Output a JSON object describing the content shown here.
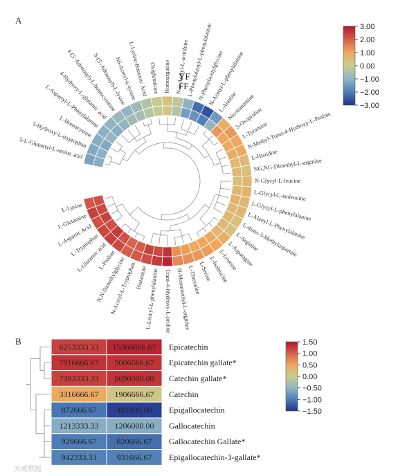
{
  "chart_data": [
    {
      "panel_label": "A",
      "type": "heatmap",
      "layout": "circular",
      "group_labels": [
        "YF",
        "FF"
      ],
      "colorbar": {
        "ticks": [
          "3.00",
          "2.00",
          "1.00",
          "0.00",
          "−1.00",
          "−2.00",
          "−3.00"
        ],
        "range": [
          -3,
          3
        ]
      },
      "rows": [
        {
          "name": "5-L-Glutamyl-L-amino acid",
          "YF": -1.3,
          "FF": -1.1
        },
        {
          "name": "5-Hydroxy-L-tryptophan",
          "YF": -1.2,
          "FF": -1.0
        },
        {
          "name": "L-Homocystine",
          "YF": -1.1,
          "FF": -1.2
        },
        {
          "name": "L-Aspartyl-L-Phenylalanine",
          "YF": -1.0,
          "FF": -0.9
        },
        {
          "name": "4-Hydroxy-L-glutamic acid",
          "YF": -0.9,
          "FF": -1.1
        },
        {
          "name": "4-(5'-Adenosyl)-L-homocysteine",
          "YF": -0.8,
          "FF": -0.9
        },
        {
          "name": "S-(5'-Adenosyl)-L-lysine",
          "YF": -0.9,
          "FF": -0.7
        },
        {
          "name": "N6-Acetyl-L-lysine",
          "YF": -0.7,
          "FF": -0.6
        },
        {
          "name": "L-Lysine-Butanoic Acid",
          "YF": -0.4,
          "FF": -0.3
        },
        {
          "name": "Oxiglutatione",
          "YF": 0.0,
          "FF": -0.1
        },
        {
          "name": "Homoarginine",
          "YF": 0.3,
          "FF": 0.2
        },
        {
          "name": "N-α-Acetyl-L-ornithine",
          "YF": -0.2,
          "FF": -0.4
        },
        {
          "name": "L-Phenylalanyl-L-phenylalanine",
          "YF": -1.0,
          "FF": -1.4
        },
        {
          "name": "N-Phenylacetylglycine",
          "YF": -2.2,
          "FF": -1.6
        },
        {
          "name": "N-Acetyl-L-phenylalanine",
          "YF": -2.6,
          "FF": -2.0
        },
        {
          "name": "L-Alanine",
          "YF": -1.5,
          "FF": -0.9
        },
        {
          "name": "Nicotianamine",
          "YF": 0.8,
          "FF": 1.2
        },
        {
          "name": "5-Oxoproline",
          "YF": 1.2,
          "FF": 1.0
        },
        {
          "name": "L-Tyramine",
          "YF": 1.0,
          "FF": 0.9
        },
        {
          "name": "N-Methyl-Trans-4-Hydroxy-L-Proline",
          "YF": 0.9,
          "FF": 0.8
        },
        {
          "name": "L-Histidine",
          "YF": 0.5,
          "FF": 0.6
        },
        {
          "name": "NG,NG-Dimethyl-L-arginine",
          "YF": 0.4,
          "FF": 0.5
        },
        {
          "name": "N-Glycyl-L-leucine",
          "YF": 0.6,
          "FF": 0.4
        },
        {
          "name": "L-Glycyl-L-isoleucine",
          "YF": 0.7,
          "FF": 0.6
        },
        {
          "name": "L-Glycyl-L-phenylalanine",
          "YF": 0.5,
          "FF": 0.7
        },
        {
          "name": "L-Alanyl-L-Phenylalanine",
          "YF": 0.6,
          "FF": 0.5
        },
        {
          "name": "L-threo-3-Methylaspartate",
          "YF": 0.4,
          "FF": 0.6
        },
        {
          "name": "L-Arginine",
          "YF": 0.3,
          "FF": 0.5
        },
        {
          "name": "L-Asparagine",
          "YF": 0.8,
          "FF": 0.6
        },
        {
          "name": "L-Leucine",
          "YF": 1.0,
          "FF": 0.9
        },
        {
          "name": "L-Isoleucine",
          "YF": 1.1,
          "FF": 1.0
        },
        {
          "name": "L-Serine",
          "YF": 1.2,
          "FF": 1.0
        },
        {
          "name": "L-Threonine",
          "YF": 1.3,
          "FF": 1.1
        },
        {
          "name": "N-Monomethyl-L-arginine",
          "YF": 1.4,
          "FF": 1.3
        },
        {
          "name": "Trans-4-Hydroxy-L-proline",
          "YF": 2.8,
          "FF": 2.6
        },
        {
          "name": "L-Leucyl-L-phenylalanine",
          "YF": 2.5,
          "FF": 2.3
        },
        {
          "name": "Histamine",
          "YF": 2.2,
          "FF": 2.4
        },
        {
          "name": "N-Acetyl-L-Tryptophan",
          "YF": 2.1,
          "FF": 2.0
        },
        {
          "name": "N,N-Dimethylglycine",
          "YF": 2.0,
          "FF": 1.9
        },
        {
          "name": "L-Proline",
          "YF": 2.3,
          "FF": 2.2
        },
        {
          "name": "L-Glutamic acid",
          "YF": 2.4,
          "FF": 2.5
        },
        {
          "name": "L-Tryptophan",
          "YF": 2.3,
          "FF": 2.2
        },
        {
          "name": "L-Aspartic Acid",
          "YF": 2.2,
          "FF": 2.4
        },
        {
          "name": "L-Glutamine",
          "YF": 2.4,
          "FF": 2.3
        },
        {
          "name": "L-Lysine",
          "YF": 2.1,
          "FF": 2.2
        }
      ]
    },
    {
      "panel_label": "B",
      "type": "heatmap",
      "layout": "rectangular",
      "colorbar": {
        "ticks": [
          "1.50",
          "1.00",
          "0.50",
          "0.00",
          "−0.50",
          "−1.00",
          "−1.50"
        ],
        "range": [
          -1.5,
          1.5
        ]
      },
      "rows": [
        {
          "name": "Epicatechin",
          "values": [
            "6253333.33",
            "15366666.67"
          ],
          "colors": [
            1.2,
            1.4
          ]
        },
        {
          "name": "Epicatechin gallate*",
          "values": [
            "7916666.67",
            "9006666.67"
          ],
          "colors": [
            1.3,
            1.3
          ]
        },
        {
          "name": "Catechin gallate*",
          "values": [
            "7393333.33",
            "8690000.00"
          ],
          "colors": [
            1.2,
            1.3
          ]
        },
        {
          "name": "Catechin",
          "values": [
            "3316666.67",
            "1906666.67"
          ],
          "colors": [
            0.45,
            0.1
          ]
        },
        {
          "name": "Epigallocatechin",
          "values": [
            "872666.67",
            "481000.00"
          ],
          "colors": [
            -1.05,
            -1.4
          ]
        },
        {
          "name": "Gallocatechin",
          "values": [
            "1213333.33",
            "1206000.00"
          ],
          "colors": [
            -0.55,
            -0.55
          ]
        },
        {
          "name": "Gallocatechin Gallate*",
          "values": [
            "929666.67",
            "820666.67"
          ],
          "colors": [
            -1.0,
            -1.1
          ]
        },
        {
          "name": "Epigallocatechin-3-gallate*",
          "values": [
            "942333.33",
            "931666.67"
          ],
          "colors": [
            -0.95,
            -0.97
          ]
        }
      ]
    }
  ],
  "watermark": "大威数据"
}
